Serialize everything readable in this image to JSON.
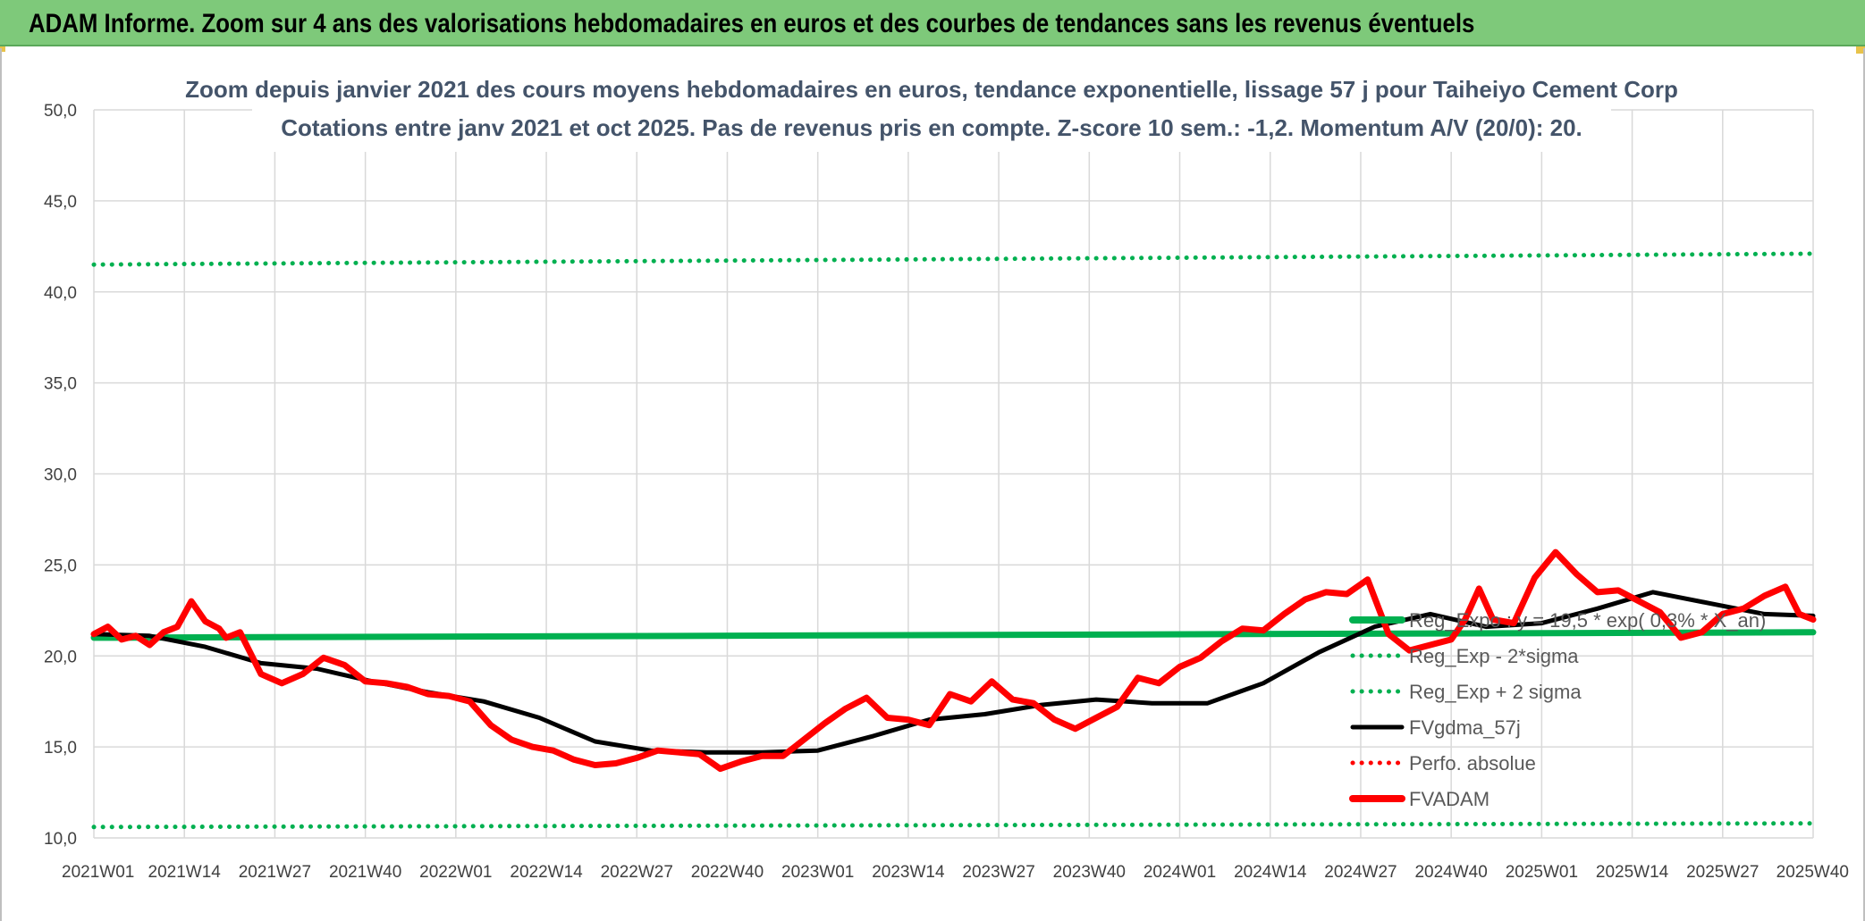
{
  "banner": {
    "title": "ADAM Informe. Zoom sur 4 ans des valorisations hebdomadaires en euros et des courbes de tendances sans les revenus éventuels"
  },
  "colors": {
    "banner_bg": "#7ec97a",
    "reg_green": "#00b050",
    "dotted_green": "#00b050",
    "black": "#000000",
    "red": "#ff0000",
    "grid": "#d9d9d9"
  },
  "chart_data": {
    "type": "line",
    "title": "Zoom depuis janvier 2021 des cours moyens hebdomadaires en euros, tendance exponentielle, lissage 57 j pour Taiheiyo Cement Corp",
    "subtitle": "Cotations entre janv 2021 et oct 2025. Pas de revenus pris en compte. Z-score 10 sem.: -1,2. Momentum A/V (20/0): 20.",
    "xlabel": "",
    "ylabel": "",
    "ylim": [
      10,
      50
    ],
    "y_ticks": [
      "50,0",
      "45,0",
      "40,0",
      "35,0",
      "30,0",
      "25,0",
      "20,0",
      "15,0",
      "10,0"
    ],
    "y_tick_values": [
      50,
      45,
      40,
      35,
      30,
      25,
      20,
      15,
      10
    ],
    "x_ticks": [
      "2021W01",
      "2021W14",
      "2021W27",
      "2021W40",
      "2022W01",
      "2022W14",
      "2022W27",
      "2022W40",
      "2023W01",
      "2023W14",
      "2023W27",
      "2023W40",
      "2024W01",
      "2024W14",
      "2024W27",
      "2024W40",
      "2025W01",
      "2025W14",
      "2025W27",
      "2025W40"
    ],
    "n_weeks": 248,
    "grid": true,
    "legend_position": "right",
    "series": [
      {
        "name": "Reg_Expo : y = 19,5 * exp( 0,3% * X_an)",
        "style": "solid-thick",
        "color": "#00b050",
        "x": [
          0,
          247
        ],
        "values": [
          21.0,
          21.3
        ]
      },
      {
        "name": "Reg_Exp - 2*sigma",
        "style": "dotted",
        "color": "#00b050",
        "x": [
          0,
          247
        ],
        "values": [
          10.6,
          10.8
        ]
      },
      {
        "name": "Reg_Exp + 2 sigma",
        "style": "dotted",
        "color": "#00b050",
        "x": [
          0,
          247
        ],
        "values": [
          41.5,
          42.1
        ]
      },
      {
        "name": "FVgdma_57j",
        "style": "solid",
        "color": "#000000",
        "x": [
          0,
          8,
          16,
          24,
          32,
          40,
          48,
          56,
          64,
          72,
          80,
          88,
          96,
          104,
          112,
          120,
          128,
          136,
          144,
          152,
          160,
          168,
          176,
          184,
          192,
          200,
          208,
          216,
          224,
          232,
          240,
          247
        ],
        "values": [
          21.2,
          21.1,
          20.5,
          19.6,
          19.3,
          18.6,
          18.0,
          17.5,
          16.6,
          15.3,
          14.8,
          14.7,
          14.7,
          14.8,
          15.6,
          16.5,
          16.8,
          17.3,
          17.6,
          17.4,
          17.4,
          18.5,
          20.2,
          21.6,
          22.3,
          21.6,
          21.8,
          22.6,
          23.5,
          22.9,
          22.3,
          22.2
        ]
      },
      {
        "name": "Perfo. absolue",
        "style": "dotted",
        "color": "#ff0000",
        "x": [],
        "values": []
      },
      {
        "name": "FVADAM",
        "style": "solid-thick",
        "color": "#ff0000",
        "x": [
          0,
          2,
          4,
          6,
          8,
          10,
          12,
          14,
          16,
          18,
          19,
          21,
          24,
          27,
          30,
          33,
          36,
          39,
          42,
          45,
          48,
          51,
          54,
          57,
          60,
          63,
          66,
          69,
          72,
          75,
          78,
          81,
          84,
          87,
          90,
          93,
          96,
          99,
          102,
          105,
          108,
          111,
          114,
          117,
          120,
          123,
          126,
          129,
          132,
          135,
          138,
          141,
          144,
          147,
          150,
          153,
          156,
          159,
          162,
          165,
          168,
          171,
          174,
          177,
          180,
          183,
          186,
          189,
          192,
          195,
          197,
          199,
          201,
          204,
          207,
          210,
          213,
          216,
          219,
          222,
          225,
          228,
          231,
          234,
          237,
          240,
          243,
          245,
          247
        ],
        "values": [
          21.2,
          21.6,
          20.9,
          21.1,
          20.6,
          21.3,
          21.6,
          23.0,
          21.9,
          21.5,
          21.0,
          21.3,
          19.0,
          18.5,
          19.0,
          19.9,
          19.5,
          18.6,
          18.5,
          18.3,
          17.9,
          17.8,
          17.5,
          16.2,
          15.4,
          15.0,
          14.8,
          14.3,
          14.0,
          14.1,
          14.4,
          14.8,
          14.7,
          14.6,
          13.8,
          14.2,
          14.5,
          14.5,
          15.4,
          16.3,
          17.1,
          17.7,
          16.6,
          16.5,
          16.2,
          17.9,
          17.5,
          18.6,
          17.6,
          17.4,
          16.5,
          16.0,
          16.6,
          17.2,
          18.8,
          18.5,
          19.4,
          19.9,
          20.8,
          21.5,
          21.4,
          22.3,
          23.1,
          23.5,
          23.4,
          24.2,
          21.2,
          20.3,
          20.6,
          20.9,
          22.0,
          23.7,
          22.0,
          21.8,
          24.3,
          25.7,
          24.5,
          23.5,
          23.6,
          23.0,
          22.4,
          21.0,
          21.3,
          22.3,
          22.6,
          23.3,
          23.8,
          22.3,
          22.0
        ]
      }
    ]
  }
}
